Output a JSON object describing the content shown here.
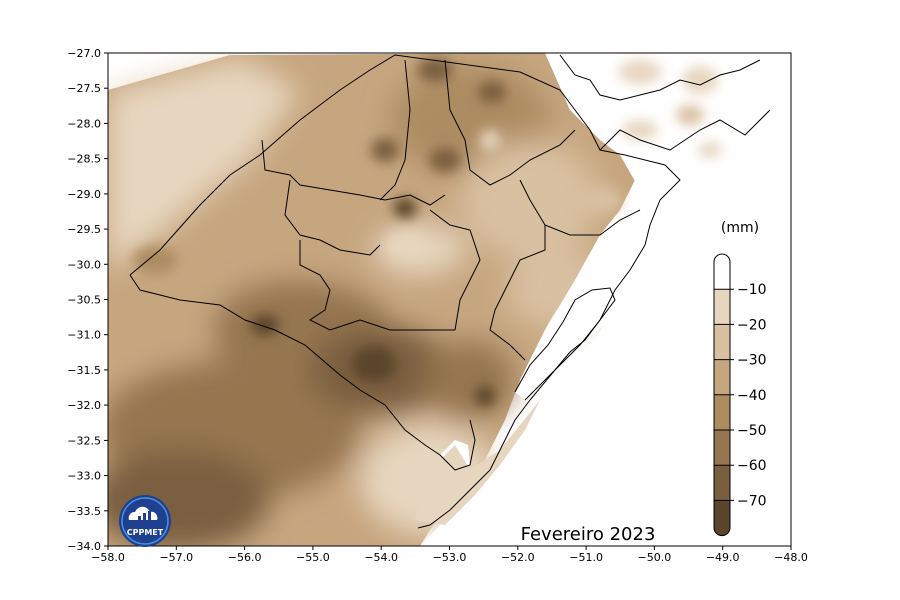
{
  "map": {
    "title": "Fevereiro 2023",
    "units_label": "(mm)",
    "x_ticks": [
      "−58.0",
      "−57.0",
      "−56.0",
      "−55.0",
      "−54.0",
      "−53.0",
      "−52.0",
      "−51.0",
      "−50.0",
      "−49.0",
      "−48.0"
    ],
    "y_ticks": [
      "−27.0",
      "−27.5",
      "−28.0",
      "−28.5",
      "−29.0",
      "−29.5",
      "−30.0",
      "−30.5",
      "−31.0",
      "−31.5",
      "−32.0",
      "−32.5",
      "−33.0",
      "−33.5",
      "−34.0"
    ],
    "colorbar": {
      "ticks": [
        "−10",
        "−20",
        "−30",
        "−40",
        "−50",
        "−60",
        "−70"
      ],
      "colors": [
        "#ffffff",
        "#e7d6bf",
        "#d8c0a0",
        "#c6a67f",
        "#ad8c62",
        "#957650",
        "#7a5f3f",
        "#5a442c"
      ]
    },
    "logo_text": "CPPMET"
  }
}
